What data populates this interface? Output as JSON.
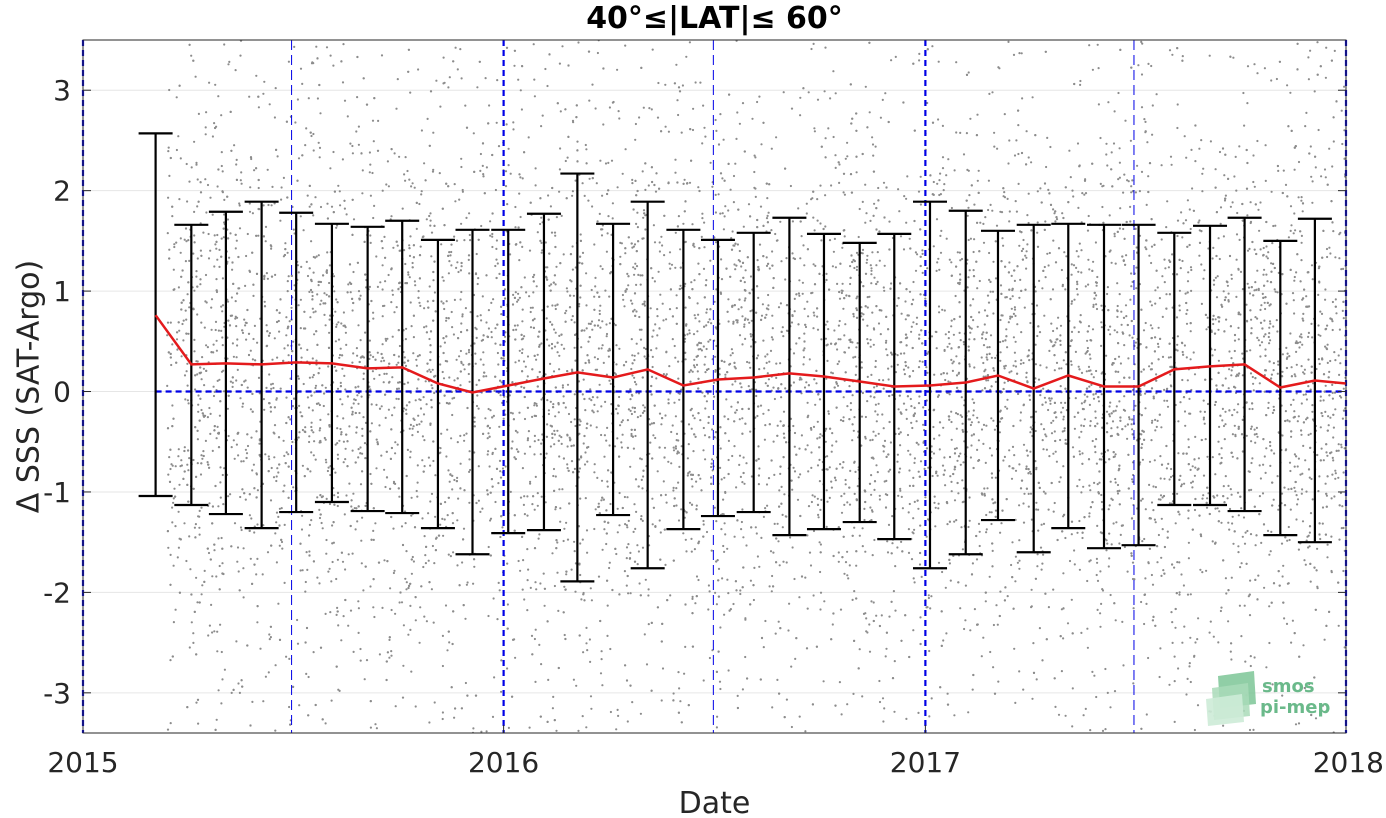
{
  "chart_data": {
    "type": "scatter",
    "title": "40°≤|LAT|≤ 60°",
    "xlabel": "Date",
    "ylabel": "Δ SSS (SAT-Argo)",
    "xlim": [
      "2015-01-01",
      "2018-01-01"
    ],
    "ylim": [
      -3.4,
      3.5
    ],
    "xticks": [
      {
        "value": "2015-01-01",
        "label": "2015"
      },
      {
        "value": "2016-01-01",
        "label": "2016"
      },
      {
        "value": "2017-01-01",
        "label": "2017"
      },
      {
        "value": "2018-01-01",
        "label": "2018"
      }
    ],
    "yticks": [
      {
        "value": 3,
        "label": "3"
      },
      {
        "value": 2,
        "label": "2"
      },
      {
        "value": 1,
        "label": "1"
      },
      {
        "value": 0,
        "label": "0"
      },
      {
        "value": -1,
        "label": "-1"
      },
      {
        "value": -2,
        "label": "-2"
      },
      {
        "value": -3,
        "label": "-3"
      }
    ],
    "grid": true,
    "year_lines": [
      "2015-01-01",
      "2016-01-01",
      "2017-01-01",
      "2018-01-01"
    ],
    "half_year_lines": [
      "2015-07-01",
      "2016-07-01",
      "2017-07-01"
    ],
    "zero_line": 0,
    "colors": {
      "scatter": "#8c8c8c",
      "mean_line": "#e41a1c",
      "errorbar": "#000000",
      "reference_lines": "#0000e6",
      "grid": "#e6e6e6"
    },
    "scatter_description_range": {
      "y_min": -3.4,
      "y_max": 3.5,
      "start": "2015-03-15"
    },
    "series": [
      {
        "kind": "monthly_mean_with_errorbars",
        "points": [
          {
            "x": "2015-03-05",
            "y": 0.76,
            "low": -1.04,
            "high": 2.57
          },
          {
            "x": "2015-04-05",
            "y": 0.27,
            "low": -1.13,
            "high": 1.66
          },
          {
            "x": "2015-05-05",
            "y": 0.28,
            "low": -1.22,
            "high": 1.79
          },
          {
            "x": "2015-06-05",
            "y": 0.27,
            "low": -1.36,
            "high": 1.89
          },
          {
            "x": "2015-07-05",
            "y": 0.29,
            "low": -1.2,
            "high": 1.78
          },
          {
            "x": "2015-08-05",
            "y": 0.28,
            "low": -1.1,
            "high": 1.67
          },
          {
            "x": "2015-09-05",
            "y": 0.23,
            "low": -1.19,
            "high": 1.64
          },
          {
            "x": "2015-10-05",
            "y": 0.24,
            "low": -1.21,
            "high": 1.7
          },
          {
            "x": "2015-11-05",
            "y": 0.08,
            "low": -1.36,
            "high": 1.51
          },
          {
            "x": "2015-12-05",
            "y": -0.01,
            "low": -1.62,
            "high": 1.61
          },
          {
            "x": "2016-01-05",
            "y": 0.06,
            "low": -1.41,
            "high": 1.61
          },
          {
            "x": "2016-02-05",
            "y": 0.13,
            "low": -1.38,
            "high": 1.77
          },
          {
            "x": "2016-03-05",
            "y": 0.19,
            "low": -1.89,
            "high": 2.17
          },
          {
            "x": "2016-04-05",
            "y": 0.14,
            "low": -1.23,
            "high": 1.67
          },
          {
            "x": "2016-05-05",
            "y": 0.22,
            "low": -1.76,
            "high": 1.89
          },
          {
            "x": "2016-06-05",
            "y": 0.06,
            "low": -1.37,
            "high": 1.61
          },
          {
            "x": "2016-07-05",
            "y": 0.12,
            "low": -1.24,
            "high": 1.51
          },
          {
            "x": "2016-08-05",
            "y": 0.14,
            "low": -1.2,
            "high": 1.58
          },
          {
            "x": "2016-09-05",
            "y": 0.18,
            "low": -1.43,
            "high": 1.73
          },
          {
            "x": "2016-10-05",
            "y": 0.15,
            "low": -1.37,
            "high": 1.57
          },
          {
            "x": "2016-11-05",
            "y": 0.1,
            "low": -1.3,
            "high": 1.48
          },
          {
            "x": "2016-12-05",
            "y": 0.05,
            "low": -1.47,
            "high": 1.57
          },
          {
            "x": "2017-01-05",
            "y": 0.06,
            "low": -1.76,
            "high": 1.89
          },
          {
            "x": "2017-02-05",
            "y": 0.09,
            "low": -1.62,
            "high": 1.8
          },
          {
            "x": "2017-03-05",
            "y": 0.16,
            "low": -1.28,
            "high": 1.6
          },
          {
            "x": "2017-04-05",
            "y": 0.03,
            "low": -1.6,
            "high": 1.66
          },
          {
            "x": "2017-05-05",
            "y": 0.16,
            "low": -1.36,
            "high": 1.67
          },
          {
            "x": "2017-06-05",
            "y": 0.05,
            "low": -1.56,
            "high": 1.66
          },
          {
            "x": "2017-07-05",
            "y": 0.05,
            "low": -1.53,
            "high": 1.66
          },
          {
            "x": "2017-08-05",
            "y": 0.22,
            "low": -1.13,
            "high": 1.58
          },
          {
            "x": "2017-09-05",
            "y": 0.25,
            "low": -1.13,
            "high": 1.65
          },
          {
            "x": "2017-10-05",
            "y": 0.27,
            "low": -1.19,
            "high": 1.73
          },
          {
            "x": "2017-11-05",
            "y": 0.04,
            "low": -1.43,
            "high": 1.5
          },
          {
            "x": "2017-12-05",
            "y": 0.11,
            "low": -1.5,
            "high": 1.72
          },
          {
            "x": "2018-01-01",
            "y": 0.08
          }
        ]
      }
    ],
    "logo": {
      "line1": "smos",
      "line2": "pi-mep"
    }
  }
}
